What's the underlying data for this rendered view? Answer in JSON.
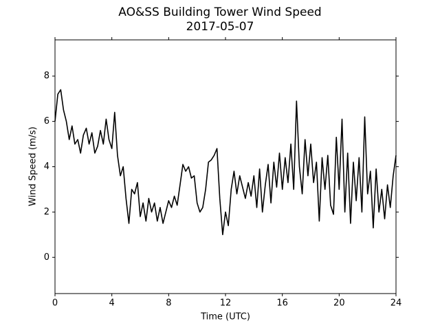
{
  "chart_data": {
    "type": "line",
    "title": "AO&SS Building Tower Wind Speed",
    "subtitle": "2017-05-07",
    "x_label": "Time (UTC)",
    "y_label": "Wind Speed (m/s)",
    "x": [
      0,
      0.2,
      0.4,
      0.6,
      0.8,
      1.0,
      1.2,
      1.4,
      1.6,
      1.8,
      2.0,
      2.2,
      2.4,
      2.6,
      2.8,
      3.0,
      3.2,
      3.4,
      3.6,
      3.8,
      4.0,
      4.2,
      4.4,
      4.6,
      4.8,
      5.0,
      5.2,
      5.4,
      5.6,
      5.8,
      6.0,
      6.2,
      6.4,
      6.6,
      6.8,
      7.0,
      7.2,
      7.4,
      7.6,
      7.8,
      8.0,
      8.2,
      8.4,
      8.6,
      8.8,
      9.0,
      9.2,
      9.4,
      9.6,
      9.8,
      10.0,
      10.2,
      10.4,
      10.6,
      10.8,
      11.0,
      11.2,
      11.4,
      11.6,
      11.8,
      12.0,
      12.2,
      12.4,
      12.6,
      12.8,
      13.0,
      13.2,
      13.4,
      13.6,
      13.8,
      14.0,
      14.2,
      14.4,
      14.6,
      14.8,
      15.0,
      15.2,
      15.4,
      15.6,
      15.8,
      16.0,
      16.2,
      16.4,
      16.6,
      16.8,
      17.0,
      17.2,
      17.4,
      17.6,
      17.8,
      18.0,
      18.2,
      18.4,
      18.6,
      18.8,
      19.0,
      19.2,
      19.4,
      19.6,
      19.8,
      20.0,
      20.2,
      20.4,
      20.6,
      20.8,
      21.0,
      21.2,
      21.4,
      21.6,
      21.8,
      22.0,
      22.2,
      22.4,
      22.6,
      22.8,
      23.0,
      23.2,
      23.4,
      23.6,
      23.8,
      24.0
    ],
    "series": [
      {
        "name": "Wind Speed",
        "color": "#000000",
        "values": [
          6.0,
          7.2,
          7.4,
          6.5,
          6.0,
          5.2,
          5.8,
          5.0,
          5.2,
          4.6,
          5.4,
          5.7,
          5.0,
          5.5,
          4.6,
          4.9,
          5.6,
          5.0,
          6.1,
          5.2,
          4.8,
          6.4,
          4.5,
          3.6,
          4.0,
          2.6,
          1.5,
          3.0,
          2.8,
          3.3,
          1.8,
          2.4,
          1.6,
          2.6,
          2.0,
          2.4,
          1.6,
          2.2,
          1.5,
          2.0,
          2.5,
          2.2,
          2.7,
          2.3,
          3.2,
          4.1,
          3.8,
          4.0,
          3.5,
          3.6,
          2.4,
          2.0,
          2.2,
          3.0,
          4.2,
          4.3,
          4.5,
          4.8,
          2.6,
          1.0,
          2.0,
          1.4,
          3.0,
          3.8,
          2.8,
          3.6,
          3.1,
          2.6,
          3.3,
          2.7,
          3.6,
          2.2,
          3.9,
          2.0,
          3.2,
          4.1,
          2.4,
          4.2,
          3.1,
          4.6,
          3.0,
          4.4,
          3.3,
          5.0,
          3.0,
          6.9,
          4.0,
          2.8,
          5.2,
          3.6,
          5.0,
          3.3,
          4.2,
          1.6,
          4.4,
          3.0,
          4.5,
          2.3,
          1.9,
          5.3,
          3.0,
          6.1,
          2.0,
          4.6,
          1.5,
          4.2,
          2.5,
          4.4,
          2.0,
          6.2,
          2.8,
          3.8,
          1.3,
          3.9,
          2.0,
          3.0,
          1.7,
          3.2,
          2.2,
          3.6,
          4.5
        ]
      }
    ],
    "xlim": [
      0,
      24
    ],
    "xticks": [
      0,
      4,
      8,
      12,
      16,
      20,
      24
    ],
    "ylim": [
      -1.6,
      9.6
    ],
    "yticks": [
      0,
      2,
      4,
      6,
      8
    ],
    "grid": false
  }
}
